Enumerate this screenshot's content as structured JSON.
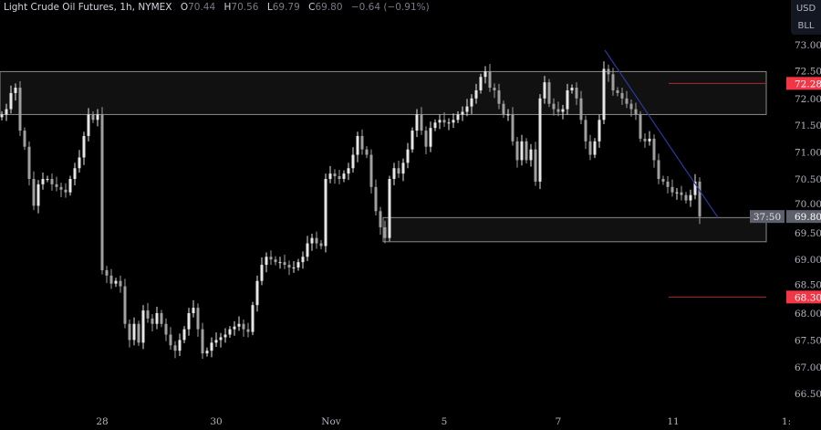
{
  "header": {
    "symbol": "Light Crude Oil Futures, 1h, NYMEX",
    "open_label": "O",
    "open": "70.44",
    "high_label": "H",
    "high": "70.56",
    "low_label": "L",
    "low": "69.79",
    "close_label": "C",
    "close": "69.80",
    "change": "−0.64 (−0.91%)"
  },
  "price_scale": {
    "currency": "USD",
    "unit": "BLL"
  },
  "colors": {
    "background": "#000000",
    "candle_up": "#e6e6e6",
    "candle_down": "#a0a0a0",
    "zone_fill": "#111111",
    "zone_border": "#8a8a8a",
    "level_line": "#b22833",
    "level_badge": "#f23645",
    "trendline": "#2a3a9a",
    "last_price_badge": "#5d606b"
  },
  "chart_data": {
    "type": "candlestick",
    "title": "Light Crude Oil Futures, 1h, NYMEX",
    "ylim": [
      66.3,
      73.1
    ],
    "y_ticks": [
      "73.00",
      "72.50",
      "72.00",
      "71.50",
      "71.00",
      "70.50",
      "70.00",
      "69.50",
      "69.00",
      "68.50",
      "68.00",
      "67.50",
      "67.00",
      "66.50"
    ],
    "x_ticks": [
      "28",
      "30",
      "Nov",
      "5",
      "7",
      "11",
      "1:"
    ],
    "grid": false,
    "closes": [
      71.7,
      71.8,
      72.1,
      72.2,
      71.4,
      71.1,
      70.5,
      70.0,
      70.4,
      70.5,
      70.5,
      70.4,
      70.35,
      70.3,
      70.25,
      70.5,
      70.7,
      70.9,
      71.3,
      71.7,
      71.6,
      71.7,
      68.8,
      68.7,
      68.55,
      68.6,
      68.5,
      67.8,
      67.5,
      67.8,
      67.45,
      68.05,
      67.9,
      67.8,
      68.0,
      67.8,
      67.6,
      67.4,
      67.3,
      67.5,
      67.7,
      68.0,
      68.1,
      67.7,
      67.25,
      67.3,
      67.45,
      67.5,
      67.55,
      67.6,
      67.7,
      67.75,
      67.8,
      67.7,
      67.65,
      68.15,
      68.6,
      68.9,
      69.05,
      69.0,
      68.95,
      68.95,
      68.9,
      68.85,
      68.85,
      68.95,
      69.05,
      69.3,
      69.4,
      69.3,
      69.25,
      70.5,
      70.6,
      70.55,
      70.5,
      70.6,
      70.7,
      70.95,
      71.3,
      71.05,
      70.95,
      70.35,
      69.9,
      69.6,
      69.4,
      70.5,
      70.7,
      70.6,
      70.8,
      71.05,
      71.4,
      71.7,
      71.4,
      71.1,
      71.45,
      71.55,
      71.6,
      71.55,
      71.55,
      71.6,
      71.7,
      71.75,
      71.85,
      72.0,
      72.15,
      72.4,
      72.5,
      72.2,
      72.15,
      71.9,
      71.7,
      71.7,
      71.2,
      70.85,
      71.2,
      70.85,
      71.05,
      70.45,
      72.0,
      72.3,
      71.9,
      71.8,
      71.75,
      71.8,
      72.15,
      72.2,
      72.0,
      71.6,
      71.2,
      70.95,
      71.2,
      71.6,
      72.55,
      72.45,
      72.15,
      72.1,
      72.0,
      71.9,
      71.8,
      71.7,
      71.25,
      71.2,
      71.25,
      70.85,
      70.5,
      70.45,
      70.35,
      70.25,
      70.25,
      70.2,
      70.1,
      70.2,
      70.45,
      69.8
    ],
    "zones": [
      {
        "top": 72.5,
        "bottom": 71.7,
        "extends": "full"
      },
      {
        "top": 69.78,
        "bottom": 69.33,
        "extends": "from Nov 4"
      }
    ],
    "levels": [
      {
        "price": "72.28"
      },
      {
        "price": "68.30"
      }
    ],
    "trendline": {
      "from_price": 72.9,
      "to_price": 69.78
    },
    "last_price": "69.80",
    "countdown": "37:50"
  }
}
